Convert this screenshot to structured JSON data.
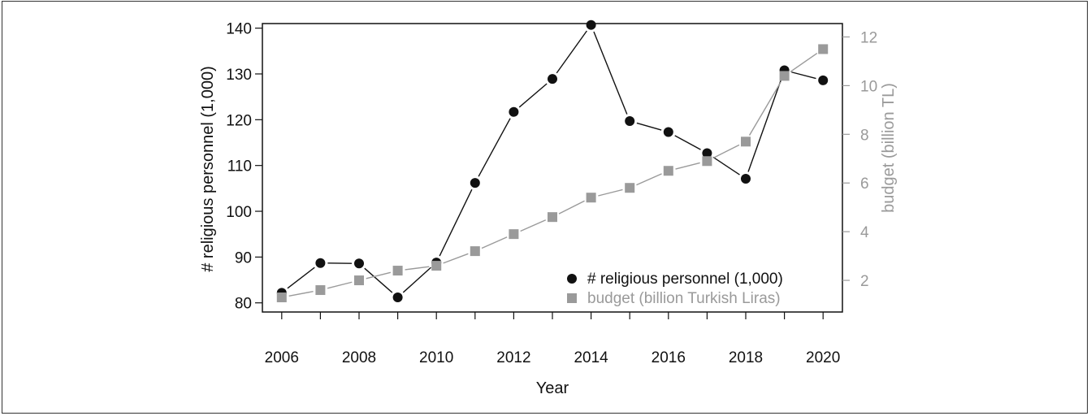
{
  "chart_data": {
    "type": "line",
    "xlabel": "Year",
    "ylabel_left": "# religious personnel (1,000)",
    "ylabel_right": "budget (billion TL)",
    "x": [
      2006,
      2007,
      2008,
      2009,
      2010,
      2011,
      2012,
      2013,
      2014,
      2015,
      2016,
      2017,
      2018,
      2019,
      2020
    ],
    "xlim": [
      2005.5,
      2020.5
    ],
    "x_ticks": [
      2006,
      2008,
      2010,
      2012,
      2014,
      2016,
      2018,
      2020
    ],
    "ylim_left": [
      78,
      141
    ],
    "y_ticks_left": [
      80,
      90,
      100,
      110,
      120,
      130,
      140
    ],
    "ylim_right": [
      0.7,
      12.55
    ],
    "y_ticks_right": [
      2,
      4,
      6,
      8,
      10,
      12
    ],
    "series": [
      {
        "name": "# religious personnel (1,000)",
        "axis": "left",
        "marker": "circle",
        "color": "#111111",
        "values": [
          82.2,
          88.7,
          88.6,
          81.2,
          88.8,
          106.2,
          121.7,
          128.9,
          140.7,
          119.7,
          117.3,
          112.7,
          107.1,
          130.8,
          128.6
        ]
      },
      {
        "name": "budget (billion Turkish Liras)",
        "axis": "right",
        "marker": "square",
        "color": "#9a9a9a",
        "values": [
          1.3,
          1.6,
          2.0,
          2.4,
          2.6,
          3.2,
          3.9,
          4.6,
          5.4,
          5.8,
          6.5,
          6.9,
          7.7,
          10.4,
          11.5
        ]
      }
    ],
    "legend": {
      "position": "bottom-right"
    },
    "grid": false
  }
}
